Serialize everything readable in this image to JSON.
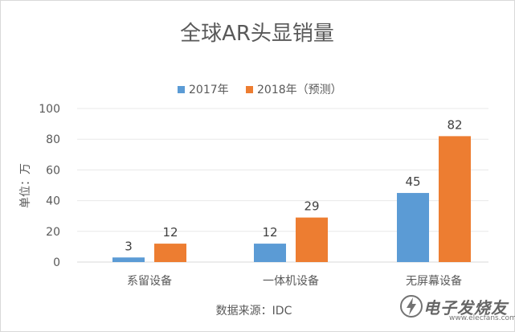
{
  "chart_data": {
    "type": "bar",
    "title": "全球AR头显销量",
    "ylabel": "单位：万",
    "xlabel": "数据来源：IDC",
    "categories": [
      "系留设备",
      "一体机设备",
      "无屏幕设备"
    ],
    "series": [
      {
        "name": "2017年",
        "values": [
          3,
          12,
          45
        ],
        "color": "#5b9bd5"
      },
      {
        "name": "2018年（预测）",
        "values": [
          12,
          29,
          82
        ],
        "color": "#ed7d31"
      }
    ],
    "ylim": [
      0,
      100
    ],
    "yticks": [
      0,
      20,
      40,
      60,
      80,
      100
    ],
    "grid": true,
    "legend_position": "top"
  },
  "watermark": {
    "text": "电子发烧友",
    "url": "www.elecfans.com",
    "icon": "lightning-logo-icon"
  }
}
